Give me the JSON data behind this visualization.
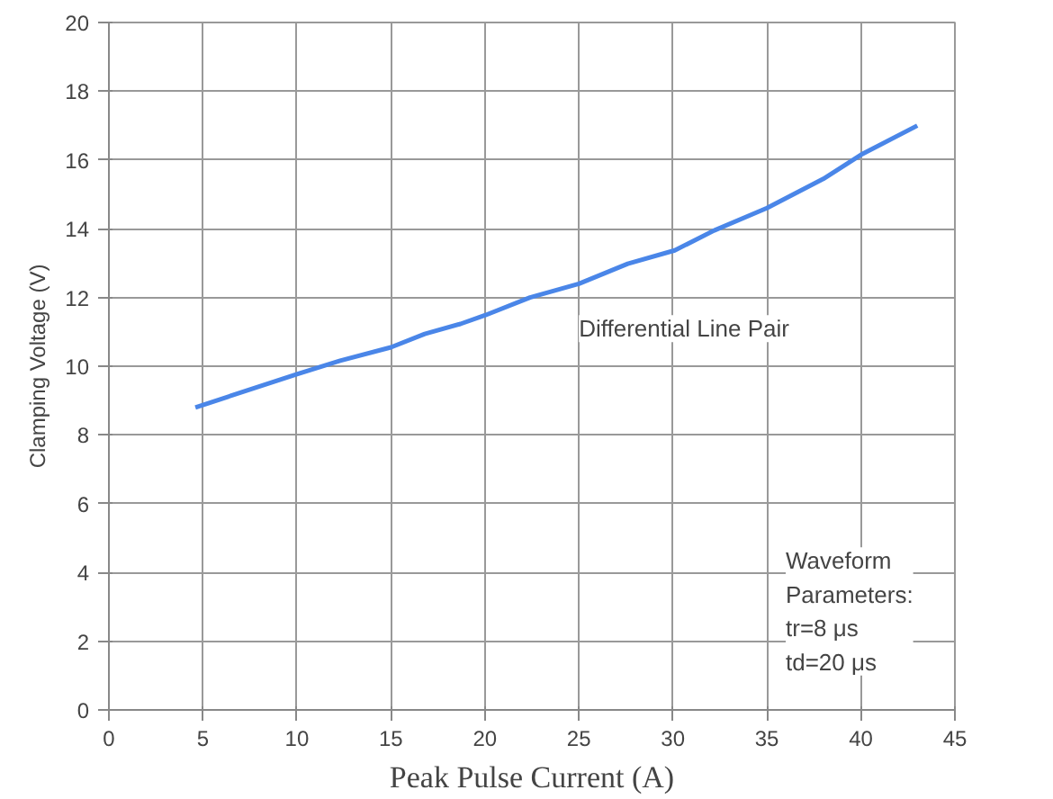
{
  "chart_data": {
    "type": "line",
    "xlabel": "Peak Pulse Current (A)",
    "ylabel": "Clamping Voltage (V)",
    "xlim": [
      0,
      45
    ],
    "ylim": [
      0,
      20
    ],
    "xticks": [
      0,
      5,
      10,
      15,
      20,
      25,
      30,
      35,
      40,
      45
    ],
    "yticks": [
      0,
      2,
      4,
      6,
      8,
      10,
      12,
      14,
      16,
      18,
      20
    ],
    "grid": true,
    "series": [
      {
        "name": "Differential Line Pair",
        "color": "#4a86e8",
        "x": [
          4.6,
          10,
          12.3,
          15,
          16.8,
          18.7,
          20,
          22.4,
          25,
          27.6,
          30.1,
          32.2,
          35,
          38,
          40,
          43
        ],
        "values": [
          8.8,
          9.77,
          10.16,
          10.55,
          10.94,
          11.23,
          11.48,
          12.0,
          12.4,
          12.98,
          13.37,
          13.95,
          14.6,
          15.45,
          16.15,
          17.0
        ]
      }
    ],
    "annotations": [
      "Waveform\nParameters:\ntr=8 μs\ntd=20 μs"
    ]
  }
}
